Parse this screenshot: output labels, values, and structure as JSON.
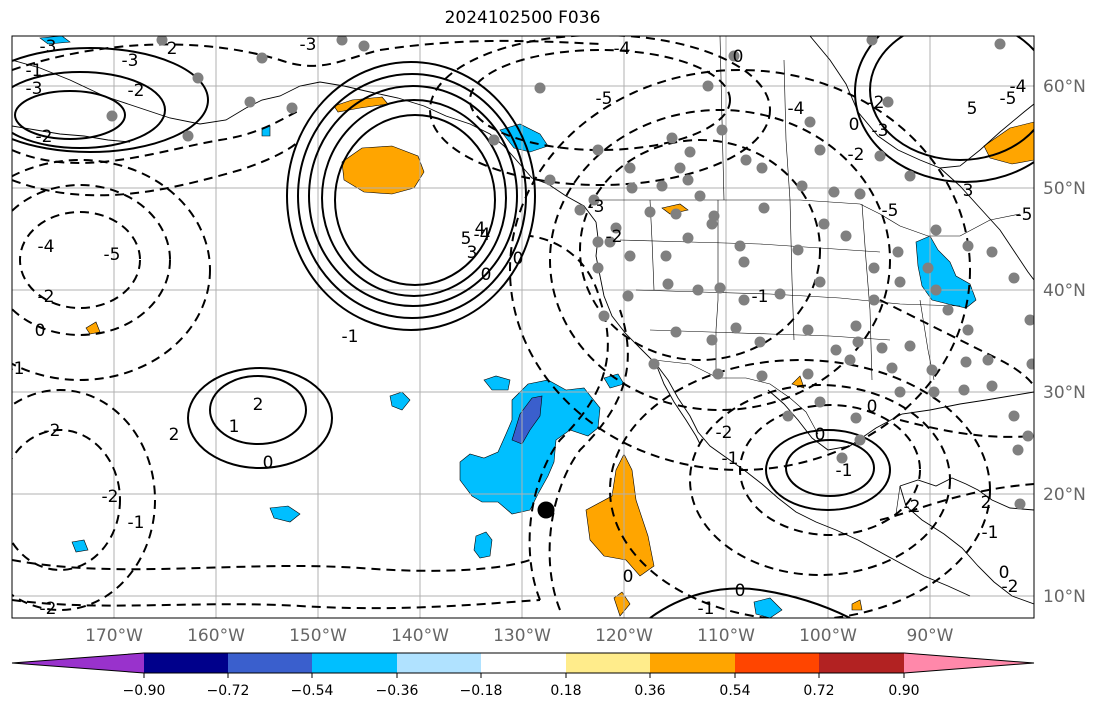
{
  "title": "2024102500 F036",
  "colors": {
    "coast": "#000000",
    "grid": "#b0b0b0",
    "contour": "#000000",
    "dots": "#808080",
    "storm_marker": "#000000"
  },
  "legend": {
    "colorbar": {
      "colors": [
        "#9932cc",
        "#00008b",
        "#3a5fcd",
        "#00bfff",
        "#b0e2ff",
        "#ffffff",
        "#ffec8b",
        "#ffa500",
        "#ff4500",
        "#b22222",
        "#ff88aa"
      ],
      "tick_labels": [
        "−0.90",
        "−0.72",
        "−0.54",
        "−0.36",
        "−0.18",
        "0.18",
        "0.36",
        "0.54",
        "0.72",
        "0.90"
      ]
    }
  },
  "map": {
    "lon_labels": [
      "170°W",
      "160°W",
      "150°W",
      "140°W",
      "130°W",
      "120°W",
      "110°W",
      "100°W",
      "90°W"
    ],
    "lat_labels": [
      "60°N",
      "50°N",
      "40°N",
      "30°N",
      "20°N",
      "10°N"
    ],
    "contour_labels": [
      "-3",
      "2",
      "-1",
      "-3",
      "-3",
      "-2",
      "-4",
      "-5",
      "0",
      "-3",
      "-2",
      "-4",
      "-5",
      "-4",
      "-2",
      "0",
      "-1",
      "2",
      "1",
      "0",
      "-2",
      "2",
      "-2",
      "-1",
      "-2",
      "0",
      "0",
      "-2",
      "-1",
      "0",
      "-1",
      "0",
      "0",
      "2",
      "-1",
      "-2",
      "0",
      "-1",
      "-2",
      "0",
      "-1",
      "-2",
      "5",
      "4",
      "3",
      "-3",
      "-5",
      "-4",
      "-2",
      "5",
      "-3",
      "3",
      "-5",
      "-2",
      "0",
      "-4",
      "-5",
      "-1"
    ]
  }
}
